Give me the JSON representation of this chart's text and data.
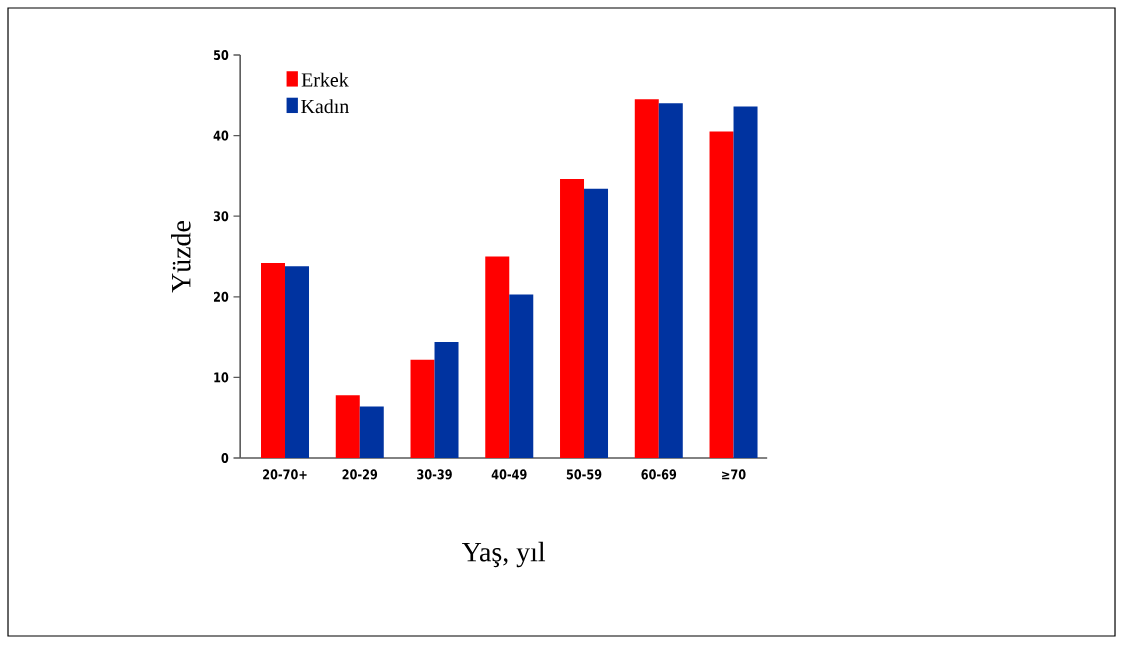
{
  "chart_data": {
    "type": "bar",
    "xlabel": "Yaş, yıl",
    "ylabel": "Yüzde",
    "categories": [
      "20-70+",
      "20-29",
      "30-39",
      "40-49",
      "50-59",
      "60-69",
      "≥70"
    ],
    "series": [
      {
        "name": "Erkek",
        "color": "#ff0000",
        "values": [
          24.2,
          7.8,
          12.2,
          25.0,
          34.6,
          44.5,
          40.5
        ]
      },
      {
        "name": "Kadın",
        "color": "#0033a0",
        "values": [
          23.8,
          6.4,
          14.4,
          20.3,
          33.4,
          44.0,
          43.6
        ]
      }
    ],
    "ylim": [
      0,
      50
    ],
    "yticks": [
      0,
      10,
      20,
      30,
      40,
      50
    ],
    "legend": "top left",
    "grid": false
  }
}
